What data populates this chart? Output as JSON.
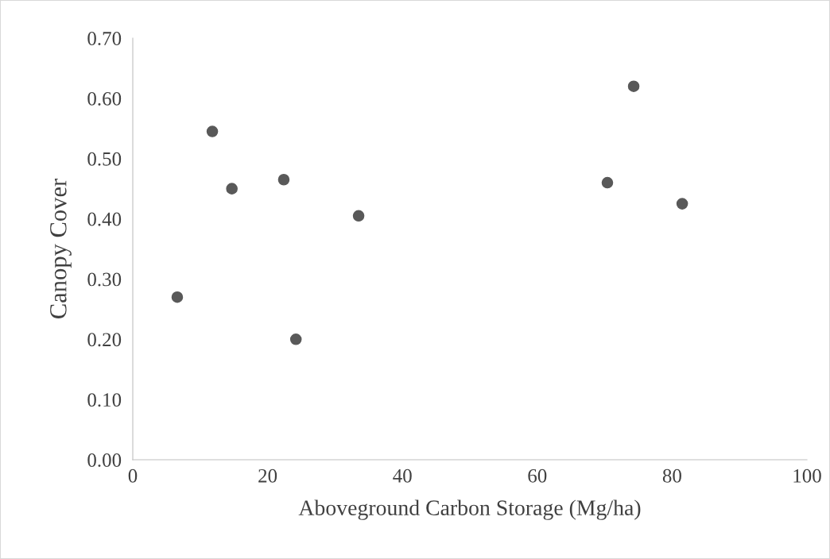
{
  "chart_data": {
    "type": "scatter",
    "xlabel": "Aboveground Carbon Storage (Mg/ha)",
    "ylabel": "Canopy Cover",
    "x": [
      6.6,
      11.8,
      14.7,
      22.4,
      24.2,
      33.5,
      70.4,
      74.3,
      81.5
    ],
    "series": [
      {
        "color": "#595959",
        "values": [
          0.27,
          0.545,
          0.45,
          0.465,
          0.2,
          0.405,
          0.46,
          0.62,
          0.425
        ]
      }
    ],
    "xlim": [
      0,
      100
    ],
    "xticks": [
      0,
      20,
      40,
      60,
      80,
      100
    ],
    "ylim": [
      0,
      0.7
    ],
    "yticks": [
      {
        "value": 0,
        "label": "0.00"
      },
      {
        "value": 0.1,
        "label": "0.10"
      },
      {
        "value": 0.2,
        "label": "0.20"
      },
      {
        "value": 0.3,
        "label": "0.30"
      },
      {
        "value": 0.4,
        "label": "0.40"
      },
      {
        "value": 0.5,
        "label": "0.50"
      },
      {
        "value": 0.6,
        "label": "0.60"
      },
      {
        "value": 0.7,
        "label": "0.70"
      }
    ],
    "grid": false,
    "legend": false,
    "marker": "circle"
  }
}
